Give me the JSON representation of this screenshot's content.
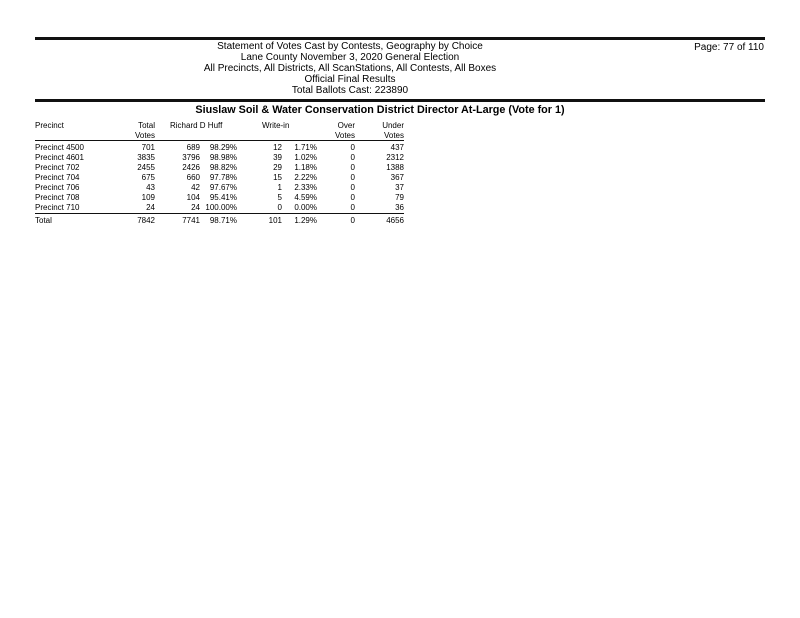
{
  "report_header": {
    "line1": "Statement of Votes Cast by Contests, Geography by Choice",
    "line2": "Lane County November 3, 2020 General Election",
    "line3": "All Precincts, All Districts, All ScanStations, All Contests, All Boxes",
    "line4": "Official Final Results",
    "line5": "Total Ballots Cast: 223890",
    "page_number": "Page: 77 of 110"
  },
  "contest": {
    "title": "Siuslaw Soil & Water Conservation District Director At-Large (Vote for 1)"
  },
  "results_table": {
    "header": {
      "precinct": "Precinct",
      "total_line1": "Total",
      "total_line2": "Votes",
      "candidate": "Richard D Huff",
      "write_in": "Write-in",
      "over_line1": "Over",
      "over_line2": "Votes",
      "under_line1": "Under",
      "under_line2": "Votes"
    },
    "rows": [
      {
        "precinct": "Precinct 4500",
        "total_votes": "701",
        "candidate_votes": "689",
        "candidate_pct": "98.29%",
        "write_in_votes": "12",
        "write_in_pct": "1.71%",
        "over_votes": "0",
        "under_votes": "437"
      },
      {
        "precinct": "Precinct 4601",
        "total_votes": "3835",
        "candidate_votes": "3796",
        "candidate_pct": "98.98%",
        "write_in_votes": "39",
        "write_in_pct": "1.02%",
        "over_votes": "0",
        "under_votes": "2312"
      },
      {
        "precinct": "Precinct 702",
        "total_votes": "2455",
        "candidate_votes": "2426",
        "candidate_pct": "98.82%",
        "write_in_votes": "29",
        "write_in_pct": "1.18%",
        "over_votes": "0",
        "under_votes": "1388"
      },
      {
        "precinct": "Precinct 704",
        "total_votes": "675",
        "candidate_votes": "660",
        "candidate_pct": "97.78%",
        "write_in_votes": "15",
        "write_in_pct": "2.22%",
        "over_votes": "0",
        "under_votes": "367"
      },
      {
        "precinct": "Precinct 706",
        "total_votes": "43",
        "candidate_votes": "42",
        "candidate_pct": "97.67%",
        "write_in_votes": "1",
        "write_in_pct": "2.33%",
        "over_votes": "0",
        "under_votes": "37"
      },
      {
        "precinct": "Precinct 708",
        "total_votes": "109",
        "candidate_votes": "104",
        "candidate_pct": "95.41%",
        "write_in_votes": "5",
        "write_in_pct": "4.59%",
        "over_votes": "0",
        "under_votes": "79"
      },
      {
        "precinct": "Precinct 710",
        "total_votes": "24",
        "candidate_votes": "24",
        "candidate_pct": "100.00%",
        "write_in_votes": "0",
        "write_in_pct": "0.00%",
        "over_votes": "0",
        "under_votes": "36"
      }
    ],
    "total_row": {
      "precinct": "Total",
      "total_votes": "7842",
      "candidate_votes": "7741",
      "candidate_pct": "98.71%",
      "write_in_votes": "101",
      "write_in_pct": "1.29%",
      "over_votes": "0",
      "under_votes": "4656"
    }
  },
  "colors": {
    "text": "#000000",
    "rule": "#111111",
    "background": "#ffffff"
  }
}
